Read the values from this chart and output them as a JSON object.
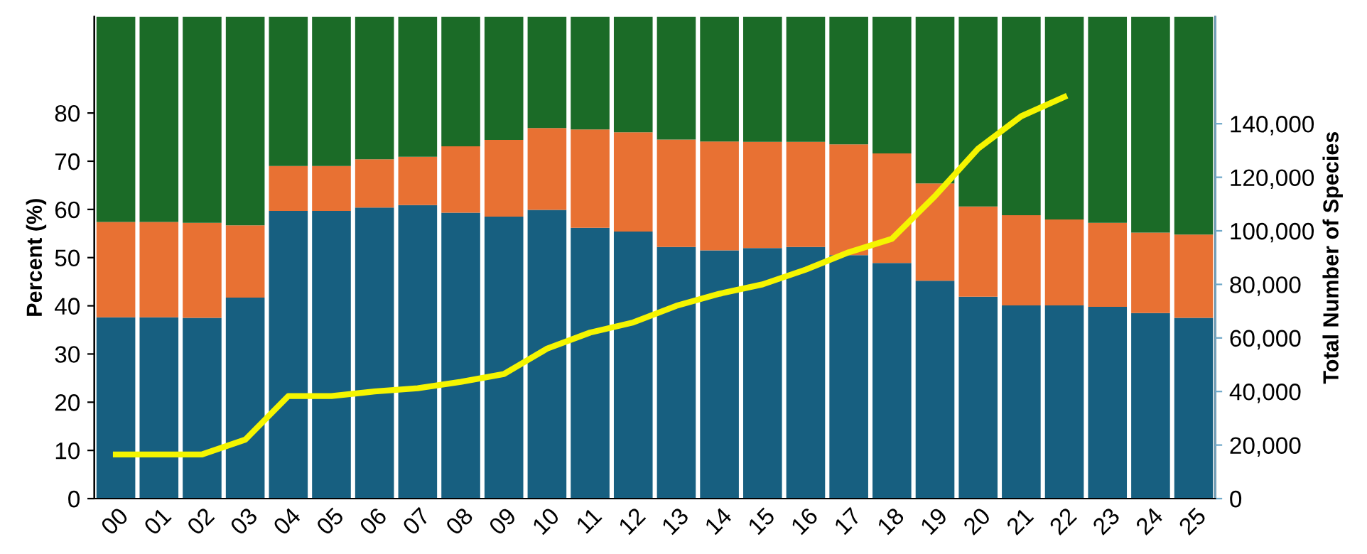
{
  "chart_data": {
    "type": "bar",
    "stacked": true,
    "ylabel": "Percent (%)",
    "y2label": "Total Number of Species",
    "categories": [
      "00",
      "01",
      "02",
      "03",
      "04",
      "05",
      "06",
      "07",
      "08",
      "09",
      "10",
      "11",
      "12",
      "13",
      "14",
      "15",
      "16",
      "17",
      "18",
      "19",
      "20",
      "21",
      "22",
      "23",
      "24",
      "25"
    ],
    "series": [
      {
        "color": "#175f80",
        "values": [
          37.6,
          37.6,
          37.5,
          41.7,
          59.7,
          59.7,
          60.4,
          60.9,
          59.3,
          58.5,
          59.9,
          56.2,
          55.4,
          52.2,
          51.5,
          52.0,
          52.2,
          50.5,
          48.9,
          45.2,
          41.9,
          40.1,
          40.1,
          39.8,
          38.5,
          37.5
        ]
      },
      {
        "color": "#e87133",
        "values": [
          19.8,
          19.8,
          19.7,
          15.0,
          9.3,
          9.3,
          10.0,
          10.0,
          13.8,
          15.9,
          17.0,
          20.4,
          20.6,
          22.3,
          22.6,
          22.0,
          21.8,
          23.0,
          22.7,
          20.2,
          18.7,
          18.7,
          17.8,
          17.4,
          16.7,
          17.3
        ]
      },
      {
        "color": "#1b6b27",
        "values": [
          42.6,
          42.6,
          42.8,
          43.3,
          31.0,
          31.0,
          29.6,
          29.1,
          26.9,
          25.6,
          23.1,
          23.4,
          24.0,
          25.5,
          25.9,
          26.0,
          26.0,
          26.5,
          28.4,
          34.6,
          39.4,
          41.2,
          42.1,
          42.8,
          44.8,
          45.2
        ]
      },
      {
        "type": "line",
        "axis": "y2",
        "color": "#f5f500",
        "values": [
          16500,
          16500,
          16500,
          22000,
          38300,
          38300,
          40000,
          41200,
          43600,
          46500,
          56000,
          62000,
          65800,
          72000,
          76500,
          80000,
          85500,
          92000,
          97000,
          113000,
          130700,
          142800,
          150000,
          null,
          null,
          null
        ]
      }
    ],
    "ylim": [
      0,
      100
    ],
    "yticks": [
      0,
      10,
      20,
      30,
      40,
      50,
      60,
      70,
      80
    ],
    "y2lim": [
      0,
      180000
    ],
    "y2ticks": [
      {
        "value": 0,
        "label": "0"
      },
      {
        "value": 20000,
        "label": "20,000"
      },
      {
        "value": 40000,
        "label": "40,000"
      },
      {
        "value": 60000,
        "label": "60,000"
      },
      {
        "value": 80000,
        "label": "80,000"
      },
      {
        "value": 100000,
        "label": "100,000"
      },
      {
        "value": 120000,
        "label": "120,000"
      },
      {
        "value": 140000,
        "label": "140,000"
      }
    ],
    "grid": false
  }
}
